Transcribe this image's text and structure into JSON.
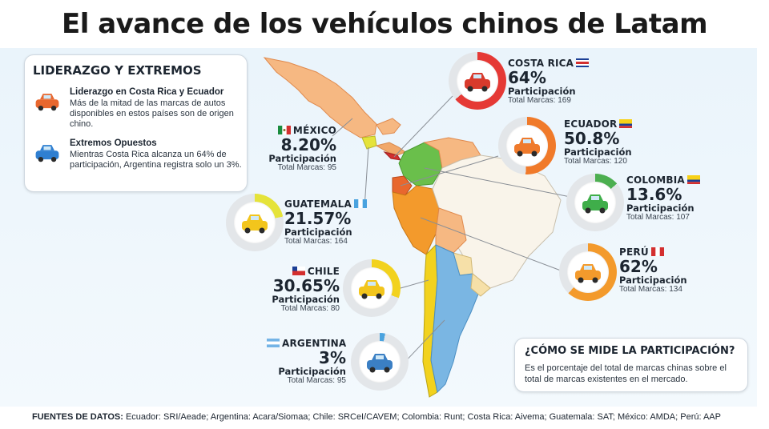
{
  "title": "El avance de los vehículos chinos de Latam",
  "leadership": {
    "heading": "LIDERAZGO Y EXTREMOS",
    "items": [
      {
        "title": "Liderazgo en Costa Rica y Ecuador",
        "text": "Más de la mitad de las marcas de autos disponibles en estos países son de origen chino.",
        "car_color": "#e8672e"
      },
      {
        "title": "Extremos Opuestos",
        "text": "Mientras Costa Rica alcanza un 64% de participación, Argentina registra solo un 3%.",
        "car_color": "#2f7fd1"
      }
    ]
  },
  "countries": {
    "costa_rica": {
      "name": "COSTA RICA",
      "pct": "64%",
      "share": 0.64,
      "label": "Participación",
      "total": "Total Marcas: 169",
      "color": "#e53935",
      "car": "#d83a2c"
    },
    "mexico": {
      "name": "MÉXICO",
      "pct": "8.20%",
      "share": 0.082,
      "label": "Participación",
      "total": "Total Marcas: 95"
    },
    "ecuador": {
      "name": "ECUADOR",
      "pct": "50.8%",
      "share": 0.508,
      "label": "Participación",
      "total": "Total Marcas: 120",
      "color": "#f07a2a",
      "car": "#ef7a2c"
    },
    "colombia": {
      "name": "COLOMBIA",
      "pct": "13.6%",
      "share": 0.136,
      "label": "Participación",
      "total": "Total Marcas: 107",
      "color": "#4caf50",
      "car": "#3fae4a"
    },
    "guatemala": {
      "name": "GUATEMALA",
      "pct": "21.57%",
      "share": 0.2157,
      "label": "Participación",
      "total": "Total Marcas: 164",
      "color": "#e5e33a",
      "car": "#f2c51c"
    },
    "peru": {
      "name": "PERÚ",
      "pct": "62%",
      "share": 0.62,
      "label": "Participación",
      "total": "Total Marcas: 134",
      "color": "#f39a2c",
      "car": "#f39a2c"
    },
    "chile": {
      "name": "CHILE",
      "pct": "30.65%",
      "share": 0.3065,
      "label": "Participación",
      "total": "Total Marcas: 80",
      "color": "#f2d21e",
      "car": "#f2c51c"
    },
    "argentina": {
      "name": "ARGENTINA",
      "pct": "3%",
      "share": 0.03,
      "label": "Participación",
      "total": "Total Marcas: 95",
      "color": "#4aa3df",
      "car": "#3b7fc4"
    }
  },
  "how": {
    "heading": "¿CÓMO SE MIDE LA PARTICIPACIÓN?",
    "text": "Es el porcentaje del total de marcas chinas sobre el total de marcas existentes en el mercado."
  },
  "sources": {
    "label": "FUENTES DE DATOS:",
    "text": "Ecuador: SRI/Aeade; Argentina: Acara/Siomaa; Chile: SRCeI/CAVEM; Colombia: Runt; Costa Rica: Aivema; Guatemala: SAT; México: AMDA; Perú: AAP"
  },
  "ring_track_color": "#e3e6e9"
}
